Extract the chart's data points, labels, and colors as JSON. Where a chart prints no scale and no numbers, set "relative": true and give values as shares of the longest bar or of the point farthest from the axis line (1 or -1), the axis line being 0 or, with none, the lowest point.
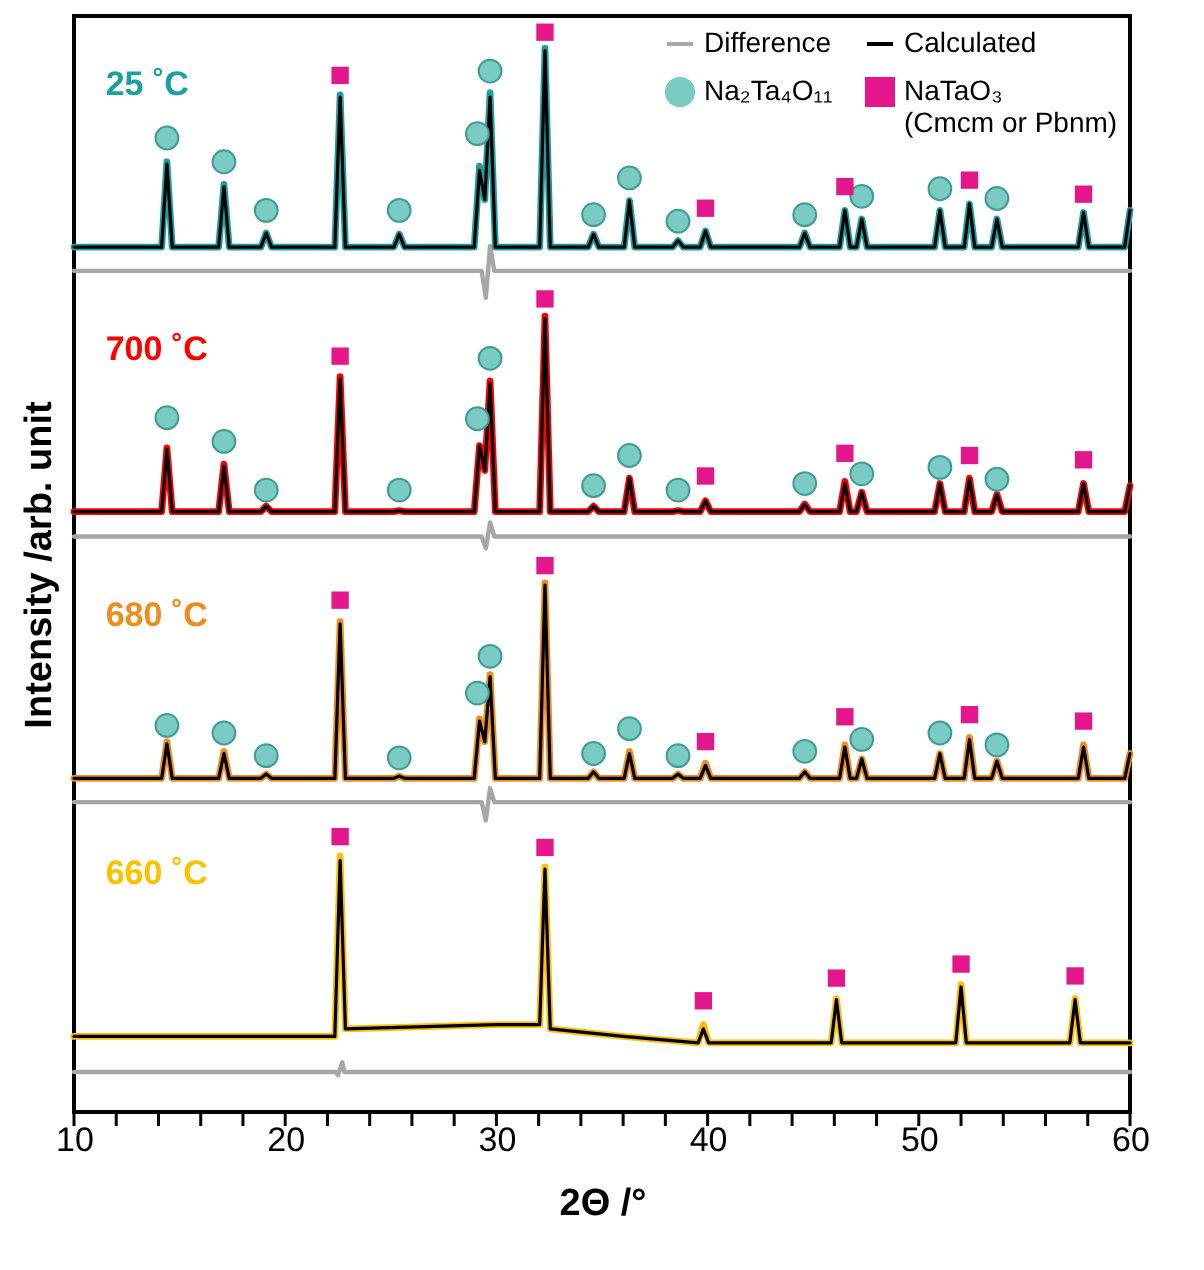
{
  "chart_data": {
    "type": "line",
    "relative": true,
    "xlabel": "2Θ /°",
    "ylabel": "Intensity /arb. unit",
    "xlim": [
      10,
      60
    ],
    "xticks": [
      10,
      {
        "value": 12,
        "label": null
      },
      {
        "value": 14,
        "label": null
      },
      {
        "value": 16,
        "label": null
      },
      {
        "value": 18,
        "label": null
      },
      20,
      {
        "value": 22,
        "label": null
      },
      {
        "value": 24,
        "label": null
      },
      {
        "value": 26,
        "label": null
      },
      {
        "value": 28,
        "label": null
      },
      30,
      {
        "value": 32,
        "label": null
      },
      {
        "value": 34,
        "label": null
      },
      {
        "value": 36,
        "label": null
      },
      {
        "value": 38,
        "label": null
      },
      40,
      {
        "value": 42,
        "label": null
      },
      {
        "value": 44,
        "label": null
      },
      {
        "value": 46,
        "label": null
      },
      {
        "value": 48,
        "label": null
      },
      50,
      {
        "value": 52,
        "label": null
      },
      {
        "value": 54,
        "label": null
      },
      {
        "value": 56,
        "label": null
      },
      {
        "value": 58,
        "label": null
      },
      60
    ],
    "grid": false,
    "legend": "top right",
    "series": [
      {
        "name": "Difference",
        "color": "#a6a6a6",
        "x": [
          10,
          29.3,
          29.5,
          29.7,
          29.9,
          60
        ],
        "values": [
          0.779,
          0.779,
          0.754,
          0.802,
          0.779,
          0.779
        ]
      },
      {
        "color": "#a6a6a6",
        "x": [
          10,
          29.3,
          29.5,
          29.7,
          29.9,
          60
        ],
        "values": [
          0.533,
          0.533,
          0.522,
          0.546,
          0.533,
          0.533
        ]
      },
      {
        "color": "#a6a6a6",
        "x": [
          10,
          29.3,
          29.5,
          29.7,
          29.9,
          60
        ],
        "values": [
          0.287,
          0.287,
          0.27,
          0.3,
          0.287,
          0.287
        ]
      },
      {
        "color": "#a6a6a6",
        "x": [
          10,
          22.4,
          22.5,
          22.7,
          22.8,
          60
        ],
        "values": [
          0.037,
          0.037,
          0.034,
          0.046,
          0.037,
          0.037
        ]
      },
      {
        "name": "25 ˚C",
        "color": "#1aa0a0",
        "x": [
          10,
          14.15,
          14.4,
          14.65,
          16.85,
          17.1,
          17.35,
          18.85,
          19.1,
          19.35,
          22.35,
          22.6,
          22.85,
          25.15,
          25.4,
          25.65,
          28.95,
          29.2,
          29.45,
          29.7,
          29.95,
          32.05,
          32.3,
          32.55,
          34.35,
          34.6,
          34.85,
          36.05,
          36.3,
          36.55,
          38.35,
          38.6,
          38.85,
          39.65,
          39.9,
          40.15,
          44.35,
          44.6,
          44.85,
          46.25,
          46.5,
          46.75,
          47.05,
          47.3,
          47.55,
          50.75,
          51,
          51.25,
          52.15,
          52.4,
          52.65,
          53.45,
          53.7,
          53.95,
          57.55,
          57.8,
          58.05,
          59.75,
          60
        ],
        "values": [
          0.801,
          0.801,
          0.88,
          0.801,
          0.801,
          0.859,
          0.801,
          0.801,
          0.814,
          0.801,
          0.801,
          0.942,
          0.801,
          0.801,
          0.813,
          0.801,
          0.801,
          0.876,
          0.845,
          0.944,
          0.801,
          0.801,
          0.985,
          0.801,
          0.801,
          0.813,
          0.801,
          0.801,
          0.844,
          0.801,
          0.801,
          0.807,
          0.801,
          0.801,
          0.816,
          0.801,
          0.801,
          0.814,
          0.801,
          0.801,
          0.835,
          0.801,
          0.801,
          0.827,
          0.801,
          0.801,
          0.835,
          0.801,
          0.801,
          0.841,
          0.801,
          0.801,
          0.827,
          0.801,
          0.801,
          0.833,
          0.801,
          0.801,
          0.835
        ]
      },
      {
        "name": "700 ˚C",
        "color": "#ff0000",
        "x": [
          10,
          14.15,
          14.4,
          14.65,
          16.85,
          17.1,
          17.35,
          18.85,
          19.1,
          19.35,
          22.35,
          22.6,
          22.85,
          25.15,
          25.4,
          25.65,
          28.95,
          29.2,
          29.45,
          29.7,
          29.95,
          32.05,
          32.3,
          32.55,
          34.35,
          34.6,
          34.85,
          36.05,
          36.3,
          36.55,
          38.35,
          38.6,
          38.85,
          39.65,
          39.9,
          40.15,
          44.35,
          44.6,
          44.85,
          46.25,
          46.5,
          46.75,
          47.05,
          47.3,
          47.55,
          50.75,
          51,
          51.25,
          52.15,
          52.4,
          52.65,
          53.45,
          53.7,
          53.95,
          57.55,
          57.8,
          58.05,
          59.75,
          60
        ],
        "values": [
          0.556,
          0.556,
          0.615,
          0.556,
          0.556,
          0.6,
          0.556,
          0.556,
          0.561,
          0.556,
          0.556,
          0.681,
          0.556,
          0.556,
          0.557,
          0.556,
          0.556,
          0.617,
          0.594,
          0.677,
          0.556,
          0.556,
          0.737,
          0.556,
          0.556,
          0.561,
          0.556,
          0.556,
          0.587,
          0.556,
          0.556,
          0.557,
          0.556,
          0.556,
          0.566,
          0.556,
          0.556,
          0.563,
          0.556,
          0.556,
          0.584,
          0.556,
          0.556,
          0.574,
          0.556,
          0.556,
          0.582,
          0.556,
          0.556,
          0.587,
          0.556,
          0.556,
          0.572,
          0.556,
          0.556,
          0.582,
          0.556,
          0.556,
          0.58
        ]
      },
      {
        "name": "680 ˚C",
        "color": "#f08c1e",
        "x": [
          10,
          14.15,
          14.4,
          14.65,
          16.85,
          17.1,
          17.35,
          18.85,
          19.1,
          19.35,
          22.35,
          22.6,
          22.85,
          25.15,
          25.4,
          25.65,
          28.95,
          29.2,
          29.45,
          29.7,
          29.95,
          32.05,
          32.3,
          32.55,
          34.35,
          34.6,
          34.85,
          36.05,
          36.3,
          36.55,
          38.35,
          38.6,
          38.85,
          39.65,
          39.9,
          40.15,
          44.35,
          44.6,
          44.85,
          46.25,
          46.5,
          46.75,
          47.05,
          47.3,
          47.55,
          50.75,
          51,
          51.25,
          52.15,
          52.4,
          52.65,
          53.45,
          53.7,
          53.95,
          57.55,
          57.8,
          58.05,
          59.75,
          60
        ],
        "values": [
          0.309,
          0.309,
          0.343,
          0.309,
          0.309,
          0.334,
          0.309,
          0.309,
          0.313,
          0.309,
          0.309,
          0.454,
          0.309,
          0.309,
          0.311,
          0.309,
          0.309,
          0.364,
          0.343,
          0.405,
          0.309,
          0.309,
          0.49,
          0.309,
          0.309,
          0.315,
          0.309,
          0.309,
          0.334,
          0.309,
          0.309,
          0.313,
          0.309,
          0.309,
          0.323,
          0.309,
          0.309,
          0.315,
          0.309,
          0.309,
          0.34,
          0.309,
          0.309,
          0.327,
          0.309,
          0.309,
          0.332,
          0.309,
          0.309,
          0.347,
          0.309,
          0.309,
          0.325,
          0.309,
          0.309,
          0.34,
          0.309,
          0.309,
          0.332
        ]
      },
      {
        "name": "660 ˚C",
        "color": "#ffc000",
        "x": [
          10,
          20,
          22.35,
          22.6,
          22.85,
          30,
          32.05,
          32.3,
          32.55,
          36,
          39.55,
          39.8,
          40.05,
          45.85,
          46.1,
          46.35,
          51.75,
          52,
          52.25,
          57.15,
          57.4,
          57.65,
          60
        ],
        "values": [
          0.07,
          0.07,
          0.07,
          0.237,
          0.077,
          0.081,
          0.081,
          0.227,
          0.077,
          0.07,
          0.064,
          0.081,
          0.064,
          0.064,
          0.105,
          0.064,
          0.064,
          0.118,
          0.064,
          0.064,
          0.105,
          0.064,
          0.064
        ]
      },
      {
        "name": "Calculated",
        "color": "#000000",
        "x": [
          10,
          14.15,
          14.4,
          14.65,
          16.85,
          17.1,
          17.35,
          18.85,
          19.1,
          19.35,
          22.35,
          22.6,
          22.85,
          25.15,
          25.4,
          25.65,
          28.95,
          29.2,
          29.45,
          29.7,
          29.95,
          32.05,
          32.3,
          32.55,
          34.35,
          34.6,
          34.85,
          36.05,
          36.3,
          36.55,
          38.35,
          38.6,
          38.85,
          39.65,
          39.9,
          40.15,
          44.35,
          44.6,
          44.85,
          46.25,
          46.5,
          46.75,
          47.05,
          47.3,
          47.55,
          50.75,
          51,
          51.25,
          52.15,
          52.4,
          52.65,
          53.45,
          53.7,
          53.95,
          57.55,
          57.8,
          58.05,
          59.75,
          60
        ],
        "values": [
          0.801,
          0.801,
          0.878,
          0.801,
          0.801,
          0.857,
          0.801,
          0.801,
          0.814,
          0.801,
          0.801,
          0.94,
          0.801,
          0.801,
          0.813,
          0.801,
          0.801,
          0.872,
          0.845,
          0.94,
          0.801,
          0.801,
          0.983,
          0.801,
          0.801,
          0.813,
          0.801,
          0.801,
          0.844,
          0.801,
          0.801,
          0.807,
          0.801,
          0.801,
          0.816,
          0.801,
          0.801,
          0.814,
          0.801,
          0.801,
          0.835,
          0.801,
          0.801,
          0.827,
          0.801,
          0.801,
          0.835,
          0.801,
          0.801,
          0.841,
          0.801,
          0.801,
          0.827,
          0.801,
          0.801,
          0.833,
          0.801,
          0.801,
          0.835
        ]
      },
      {
        "color": "#000000",
        "x": [
          10,
          14.15,
          14.4,
          14.65,
          16.85,
          17.1,
          17.35,
          18.85,
          19.1,
          19.35,
          22.35,
          22.6,
          22.85,
          25.15,
          25.4,
          25.65,
          28.95,
          29.2,
          29.45,
          29.7,
          29.95,
          32.05,
          32.3,
          32.55,
          34.35,
          34.6,
          34.85,
          36.05,
          36.3,
          36.55,
          38.35,
          38.6,
          38.85,
          39.65,
          39.9,
          40.15,
          44.35,
          44.6,
          44.85,
          46.25,
          46.5,
          46.75,
          47.05,
          47.3,
          47.55,
          50.75,
          51,
          51.25,
          52.15,
          52.4,
          52.65,
          53.45,
          53.7,
          53.95,
          57.55,
          57.8,
          58.05,
          59.75,
          60
        ],
        "values": [
          0.556,
          0.556,
          0.614,
          0.556,
          0.556,
          0.598,
          0.556,
          0.556,
          0.561,
          0.556,
          0.556,
          0.679,
          0.556,
          0.556,
          0.557,
          0.556,
          0.556,
          0.617,
          0.594,
          0.675,
          0.556,
          0.556,
          0.735,
          0.556,
          0.556,
          0.561,
          0.556,
          0.556,
          0.587,
          0.556,
          0.556,
          0.557,
          0.556,
          0.556,
          0.566,
          0.556,
          0.556,
          0.563,
          0.556,
          0.556,
          0.582,
          0.556,
          0.556,
          0.574,
          0.556,
          0.556,
          0.582,
          0.556,
          0.556,
          0.586,
          0.556,
          0.556,
          0.572,
          0.556,
          0.556,
          0.582,
          0.556,
          0.556,
          0.58
        ]
      },
      {
        "color": "#000000",
        "x": [
          10,
          14.15,
          14.4,
          14.65,
          16.85,
          17.1,
          17.35,
          18.85,
          19.1,
          19.35,
          22.35,
          22.6,
          22.85,
          25.15,
          25.4,
          25.65,
          28.95,
          29.2,
          29.45,
          29.7,
          29.95,
          32.05,
          32.3,
          32.55,
          34.35,
          34.6,
          34.85,
          36.05,
          36.3,
          36.55,
          38.35,
          38.6,
          38.85,
          39.65,
          39.9,
          40.15,
          44.35,
          44.6,
          44.85,
          46.25,
          46.5,
          46.75,
          47.05,
          47.3,
          47.55,
          50.75,
          51,
          51.25,
          52.15,
          52.4,
          52.65,
          53.45,
          53.7,
          53.95,
          57.55,
          57.8,
          58.05,
          59.75,
          60
        ],
        "values": [
          0.309,
          0.309,
          0.341,
          0.309,
          0.309,
          0.332,
          0.309,
          0.309,
          0.313,
          0.309,
          0.309,
          0.452,
          0.309,
          0.309,
          0.311,
          0.309,
          0.309,
          0.362,
          0.343,
          0.403,
          0.309,
          0.309,
          0.488,
          0.309,
          0.309,
          0.315,
          0.309,
          0.309,
          0.332,
          0.309,
          0.309,
          0.313,
          0.309,
          0.309,
          0.321,
          0.309,
          0.309,
          0.315,
          0.309,
          0.309,
          0.338,
          0.309,
          0.309,
          0.327,
          0.309,
          0.309,
          0.332,
          0.309,
          0.309,
          0.345,
          0.309,
          0.309,
          0.325,
          0.309,
          0.309,
          0.338,
          0.309,
          0.309,
          0.332
        ]
      },
      {
        "color": "#000000",
        "x": [
          10,
          20,
          22.35,
          22.6,
          22.85,
          30,
          32.05,
          32.3,
          32.55,
          36,
          39.55,
          39.8,
          40.05,
          45.85,
          46.1,
          46.35,
          51.75,
          52,
          52.25,
          57.15,
          57.4,
          57.65,
          60
        ],
        "values": [
          0.07,
          0.07,
          0.07,
          0.233,
          0.077,
          0.081,
          0.081,
          0.225,
          0.077,
          0.07,
          0.064,
          0.077,
          0.064,
          0.064,
          0.104,
          0.064,
          0.064,
          0.116,
          0.064,
          0.064,
          0.104,
          0.064,
          0.064
        ]
      },
      {
        "name": "Na₂Ta₄O₁₁",
        "type": "scatter",
        "marker": "circle",
        "color": "#79cbc3",
        "x": [
          14.4,
          17.1,
          19.1,
          25.4,
          29.1,
          29.7,
          34.6,
          36.3,
          38.6,
          44.6,
          47.3,
          51.0,
          53.7
        ],
        "values": [
          0.902,
          0.88,
          0.835,
          0.835,
          0.906,
          0.964,
          0.831,
          0.865,
          0.825,
          0.831,
          0.848,
          0.855,
          0.846
        ]
      },
      {
        "type": "scatter",
        "marker": "circle",
        "color": "#79cbc3",
        "x": [
          14.4,
          17.1,
          19.1,
          25.4,
          29.1,
          29.7,
          34.6,
          36.3,
          38.6,
          44.6,
          47.3,
          51.0,
          53.7
        ],
        "values": [
          0.643,
          0.621,
          0.576,
          0.576,
          0.642,
          0.698,
          0.58,
          0.608,
          0.576,
          0.582,
          0.591,
          0.597,
          0.586
        ]
      },
      {
        "type": "scatter",
        "marker": "circle",
        "color": "#79cbc3",
        "x": [
          14.4,
          17.1,
          19.1,
          25.4,
          29.1,
          29.7,
          34.6,
          36.3,
          38.6,
          44.6,
          47.3,
          51.0,
          53.7
        ],
        "values": [
          0.358,
          0.351,
          0.33,
          0.328,
          0.388,
          0.422,
          0.332,
          0.355,
          0.33,
          0.334,
          0.345,
          0.351,
          0.34
        ]
      },
      {
        "name": "NaTaO₃ (Cmcm or Pbnm)",
        "type": "scatter",
        "marker": "square",
        "color": "#e4168c",
        "x": [
          22.6,
          32.3,
          39.9,
          46.5,
          52.4,
          57.8
        ],
        "values": [
          0.96,
          1.0,
          0.837,
          0.857,
          0.863,
          0.85
        ]
      },
      {
        "type": "scatter",
        "marker": "square",
        "color": "#e4168c",
        "x": [
          22.6,
          32.3,
          39.9,
          46.5,
          52.4,
          57.8
        ],
        "values": [
          0.7,
          0.753,
          0.589,
          0.61,
          0.608,
          0.604
        ]
      },
      {
        "type": "scatter",
        "marker": "square",
        "color": "#e4168c",
        "x": [
          22.6,
          32.3,
          39.9,
          46.5,
          52.4,
          57.8
        ],
        "values": [
          0.474,
          0.506,
          0.343,
          0.366,
          0.368,
          0.362
        ]
      },
      {
        "type": "scatter",
        "marker": "square",
        "color": "#e4168c",
        "x": [
          22.6,
          32.3,
          39.8,
          46.1,
          52.0,
          57.4
        ],
        "values": [
          0.255,
          0.245,
          0.103,
          0.124,
          0.137,
          0.126
        ]
      }
    ]
  }
}
